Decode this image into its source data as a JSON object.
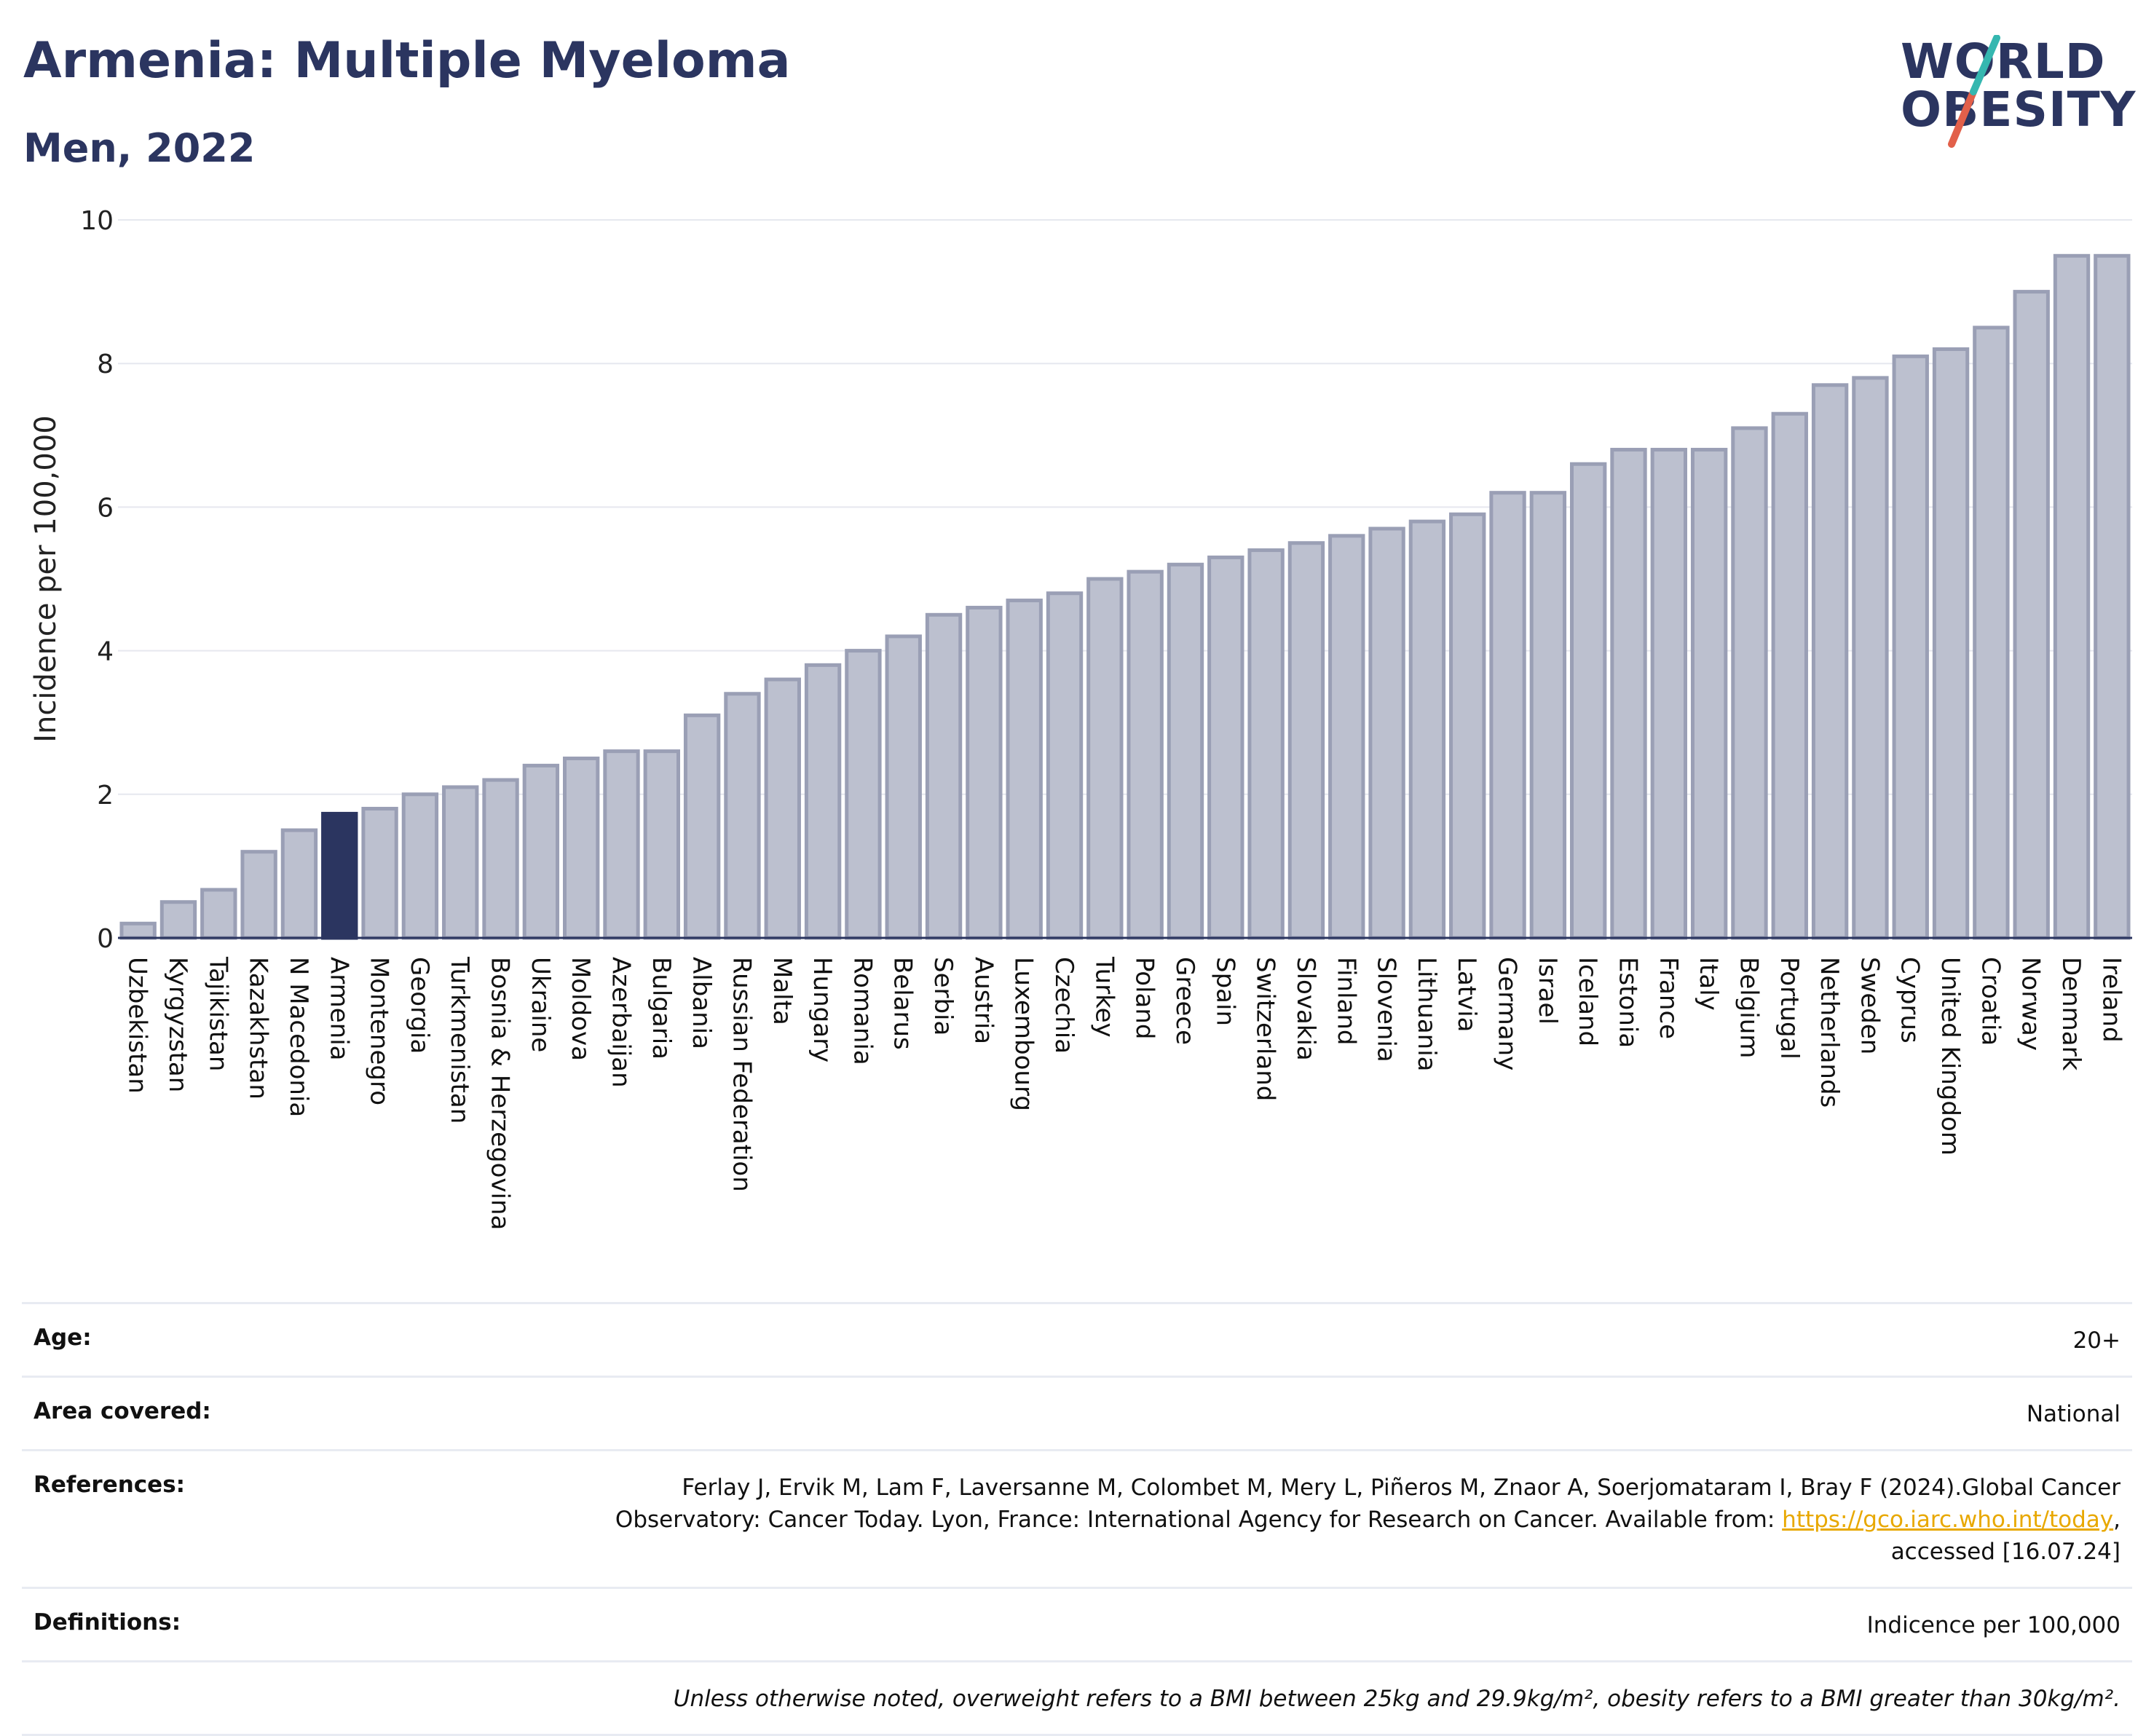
{
  "header": {
    "title": "Armenia: Multiple Myeloma",
    "subtitle": "Men, 2022",
    "logo_line1": "WORLD",
    "logo_line2": "OBESITY"
  },
  "colors": {
    "highlight": "#2b3560",
    "bar": "#bcc0cf",
    "bar_stroke": "#9a9fb5",
    "title": "#2b3560",
    "logo_slash_teal": "#35b7b0",
    "logo_slash_red": "#e2604a"
  },
  "chart_data": {
    "type": "bar",
    "ylabel": "Incidence per 100,000",
    "ylim": [
      0,
      10
    ],
    "yticks": [
      0,
      2,
      4,
      6,
      8,
      10
    ],
    "grid": true,
    "highlight": "Armenia",
    "categories": [
      "Uzbekistan",
      "Kyrgyzstan",
      "Tajikistan",
      "Kazakhstan",
      "N Macedonia",
      "Armenia",
      "Montenegro",
      "Georgia",
      "Turkmenistan",
      "Bosnia & Herzegovina",
      "Ukraine",
      "Moldova",
      "Azerbaijan",
      "Bulgaria",
      "Albania",
      "Russian Federation",
      "Malta",
      "Hungary",
      "Romania",
      "Belarus",
      "Serbia",
      "Austria",
      "Luxembourg",
      "Czechia",
      "Turkey",
      "Poland",
      "Greece",
      "Spain",
      "Switzerland",
      "Slovakia",
      "Finland",
      "Slovenia",
      "Lithuania",
      "Latvia",
      "Germany",
      "Israel",
      "Iceland",
      "Estonia",
      "France",
      "Italy",
      "Belgium",
      "Portugal",
      "Netherlands",
      "Sweden",
      "Cyprus",
      "United Kingdom",
      "Croatia",
      "Norway",
      "Denmark",
      "Ireland"
    ],
    "values": [
      0.2,
      0.5,
      0.67,
      1.2,
      1.5,
      1.73,
      1.8,
      2.0,
      2.1,
      2.2,
      2.4,
      2.5,
      2.6,
      2.6,
      3.1,
      3.4,
      3.6,
      3.8,
      4.0,
      4.2,
      4.5,
      4.6,
      4.7,
      4.8,
      5.0,
      5.1,
      5.2,
      5.3,
      5.4,
      5.5,
      5.6,
      5.7,
      5.8,
      5.9,
      6.2,
      6.2,
      6.6,
      6.8,
      6.8,
      6.8,
      7.1,
      7.3,
      7.7,
      7.8,
      8.1,
      8.2,
      8.5,
      9.0,
      9.5,
      9.5
    ]
  },
  "info": {
    "age_label": "Age:",
    "age_value": "20+",
    "area_label": "Area covered:",
    "area_value": "National",
    "references_label": "References:",
    "references_text1": "Ferlay J, Ervik M, Lam F, Laversanne M, Colombet M, Mery L, Piñeros M, Znaor A, Soerjomataram I, Bray F (2024).Global Cancer",
    "references_text2": "Observatory: Cancer Today. Lyon, France: International Agency for Research on Cancer. Available from: ",
    "references_link": "https://gco.iarc.who.int/today",
    "references_text3": ",",
    "references_text4": "accessed [16.07.24]",
    "definitions_label": "Definitions:",
    "definitions_value": "Indicence per 100,000",
    "note": "Unless otherwise noted, overweight refers to a BMI between 25kg and 29.9kg/m², obesity refers to a BMI greater than 30kg/m²."
  }
}
